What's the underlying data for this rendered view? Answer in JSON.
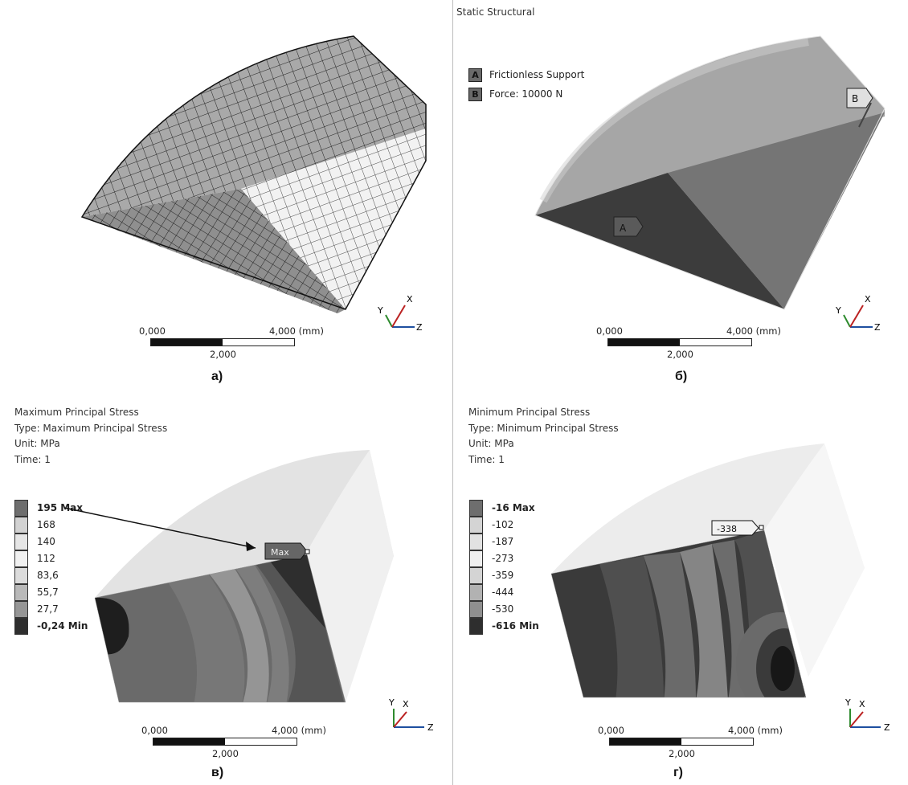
{
  "panels": {
    "a": {
      "letter": "а)"
    },
    "b": {
      "letter": "б)",
      "title": "Static Structural",
      "legend": [
        {
          "key": "A",
          "label": "Frictionless Support"
        },
        {
          "key": "B",
          "label": "Force: 10000 N"
        }
      ],
      "tags": {
        "a": "A",
        "b": "B"
      }
    },
    "c": {
      "letter": "в)",
      "title": "Maximum Principal Stress",
      "type_line": "Type: Maximum Principal Stress",
      "unit_line": "Unit: MPa",
      "time_line": "Time: 1",
      "legend": [
        "195 Max",
        "168",
        "140",
        "112",
        "83,6",
        "55,7",
        "27,7",
        "-0,24 Min"
      ],
      "probe": "Max"
    },
    "d": {
      "letter": "г)",
      "title": "Minimum Principal Stress",
      "type_line": "Type: Minimum Principal Stress",
      "unit_line": "Unit: MPa",
      "time_line": "Time: 1",
      "legend": [
        "-16 Max",
        "-102",
        "-187",
        "-273",
        "-359",
        "-444",
        "-530",
        "-616 Min"
      ],
      "probe": "-338"
    }
  },
  "scale_bar": {
    "left": "0,000",
    "right": "4,000 (mm)",
    "mid": "2,000"
  },
  "axes": {
    "x": "X",
    "y": "Y",
    "z": "Z"
  },
  "colors": {
    "max_legend": [
      "#6e6e6e",
      "#d2d2d2",
      "#e6e6e6",
      "#f1f1f1",
      "#dcdcdc",
      "#b9b9b9",
      "#969696",
      "#2e2e2e"
    ],
    "min_legend": [
      "#6e6e6e",
      "#d4d4d4",
      "#e2e2e2",
      "#efefef",
      "#d4d4d4",
      "#b2b2b2",
      "#8f8f8f",
      "#2e2e2e"
    ]
  }
}
